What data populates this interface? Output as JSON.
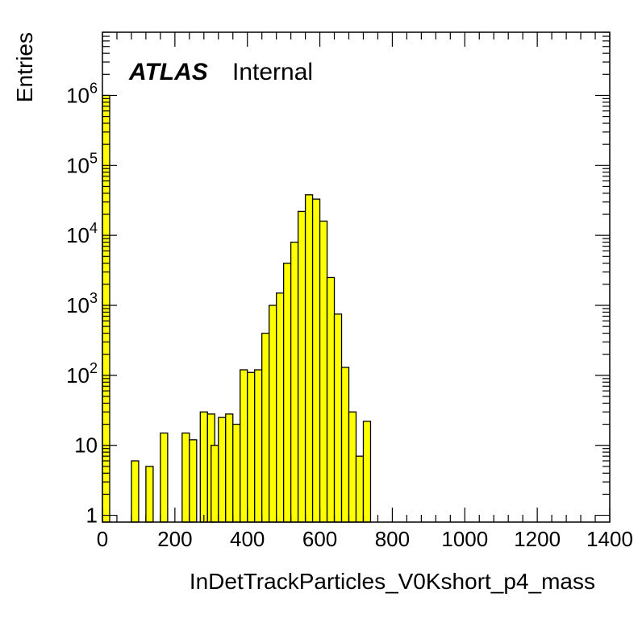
{
  "chart_data": {
    "type": "bar",
    "style": "histogram",
    "xlabel": "InDetTrackParticles_V0Kshort_p4_mass",
    "ylabel": "Entries",
    "label_bold": "ATLAS",
    "label_plain": "Internal",
    "xlim": [
      0,
      1400
    ],
    "ylim": [
      0.8,
      8000000
    ],
    "yscale": "log",
    "bin_width": 20,
    "fill_color": "#ffff00",
    "line_color": "#000000",
    "x_ticks": [
      {
        "value": 0,
        "label": "0"
      },
      {
        "value": 200,
        "label": "200"
      },
      {
        "value": 400,
        "label": "400"
      },
      {
        "value": 600,
        "label": "600"
      },
      {
        "value": 800,
        "label": "800"
      },
      {
        "value": 1000,
        "label": "1000"
      },
      {
        "value": 1200,
        "label": "1200"
      },
      {
        "value": 1400,
        "label": "1400"
      }
    ],
    "y_ticks": [
      {
        "value": 1,
        "mantissa": "1",
        "exponent": ""
      },
      {
        "value": 10,
        "mantissa": "10",
        "exponent": ""
      },
      {
        "value": 100,
        "mantissa": "10",
        "exponent": "2"
      },
      {
        "value": 1000,
        "mantissa": "10",
        "exponent": "3"
      },
      {
        "value": 10000,
        "mantissa": "10",
        "exponent": "4"
      },
      {
        "value": 100000,
        "mantissa": "10",
        "exponent": "5"
      },
      {
        "value": 1000000,
        "mantissa": "10",
        "exponent": "6"
      }
    ],
    "bins": [
      {
        "x": 0,
        "y": 1000000
      },
      {
        "x": 80,
        "y": 6
      },
      {
        "x": 100,
        "y": 0
      },
      {
        "x": 120,
        "y": 5
      },
      {
        "x": 140,
        "y": 0
      },
      {
        "x": 160,
        "y": 15
      },
      {
        "x": 180,
        "y": 0
      },
      {
        "x": 220,
        "y": 15
      },
      {
        "x": 240,
        "y": 12
      },
      {
        "x": 260,
        "y": 0
      },
      {
        "x": 270,
        "y": 30
      },
      {
        "x": 290,
        "y": 28
      },
      {
        "x": 300,
        "y": 10
      },
      {
        "x": 320,
        "y": 25
      },
      {
        "x": 340,
        "y": 28
      },
      {
        "x": 360,
        "y": 20
      },
      {
        "x": 380,
        "y": 120
      },
      {
        "x": 400,
        "y": 110
      },
      {
        "x": 420,
        "y": 120
      },
      {
        "x": 440,
        "y": 400
      },
      {
        "x": 460,
        "y": 1000
      },
      {
        "x": 480,
        "y": 1500
      },
      {
        "x": 500,
        "y": 4000
      },
      {
        "x": 520,
        "y": 8000
      },
      {
        "x": 540,
        "y": 22000
      },
      {
        "x": 560,
        "y": 38000
      },
      {
        "x": 580,
        "y": 33000
      },
      {
        "x": 600,
        "y": 16000
      },
      {
        "x": 620,
        "y": 2500
      },
      {
        "x": 640,
        "y": 750
      },
      {
        "x": 660,
        "y": 130
      },
      {
        "x": 680,
        "y": 30
      },
      {
        "x": 700,
        "y": 7
      },
      {
        "x": 720,
        "y": 22
      }
    ]
  }
}
